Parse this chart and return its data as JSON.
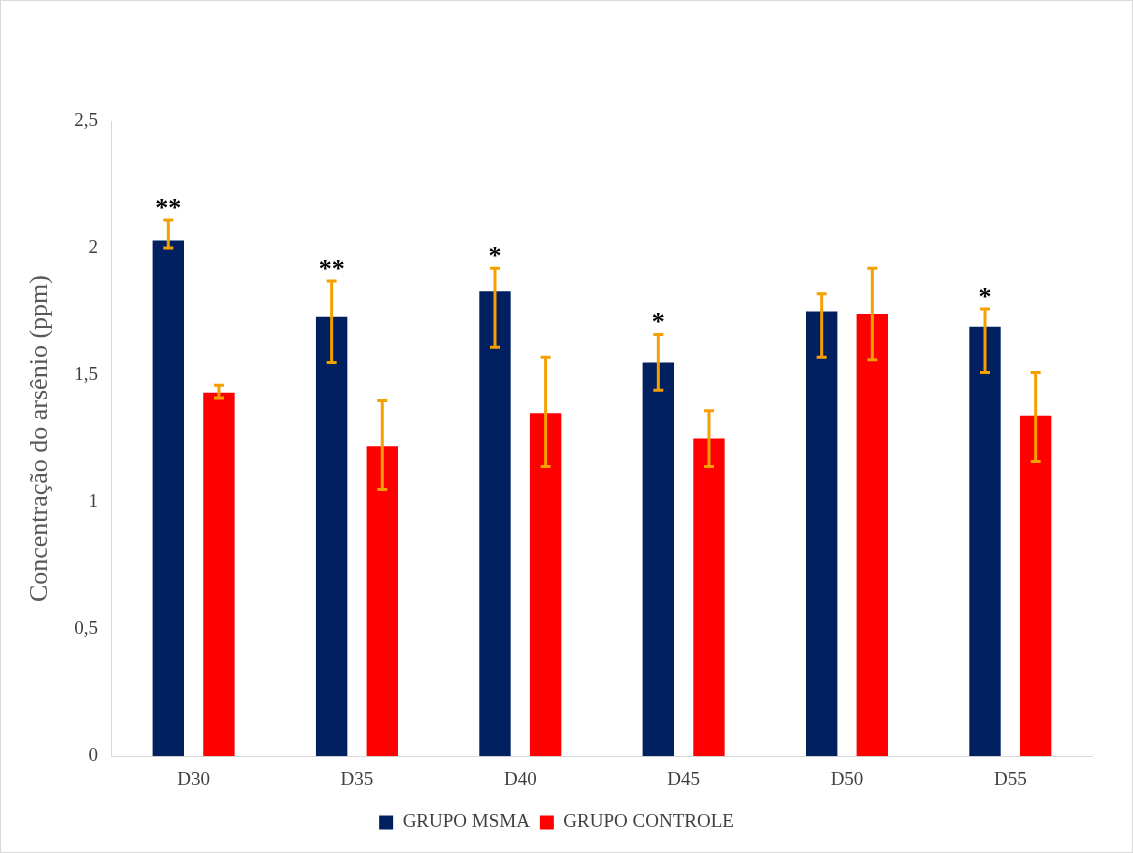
{
  "chart_data": {
    "type": "bar",
    "ylabel": "Concentração do arsênio (ppm)",
    "categories": [
      "D30",
      "D35",
      "D40",
      "D45",
      "D50",
      "D55"
    ],
    "series": [
      {
        "name": "GRUPO MSMA",
        "color": "#002060",
        "values": [
          2.03,
          1.73,
          1.83,
          1.55,
          1.75,
          1.69
        ],
        "errors": [
          [
            2.0,
            2.11
          ],
          [
            1.55,
            1.87
          ],
          [
            1.61,
            1.92
          ],
          [
            1.44,
            1.66
          ],
          [
            1.57,
            1.82
          ],
          [
            1.51,
            1.76
          ]
        ]
      },
      {
        "name": "GRUPO CONTROLE",
        "color": "#ff0000",
        "values": [
          1.43,
          1.22,
          1.35,
          1.25,
          1.74,
          1.34
        ],
        "errors": [
          [
            1.41,
            1.46
          ],
          [
            1.05,
            1.4
          ],
          [
            1.14,
            1.57
          ],
          [
            1.14,
            1.36
          ],
          [
            1.56,
            1.92
          ],
          [
            1.16,
            1.51
          ]
        ]
      }
    ],
    "ylim": [
      0,
      2.5
    ],
    "yticks": [
      0,
      {
        "value": 0.5,
        "label": "0,5"
      },
      1,
      {
        "value": 1.5,
        "label": "1,5"
      },
      2,
      {
        "value": 2.5,
        "label": "2,5"
      }
    ],
    "grid": false,
    "legend": "bottom",
    "annotations": [
      "**",
      "**",
      "*",
      "*",
      "*"
    ]
  }
}
